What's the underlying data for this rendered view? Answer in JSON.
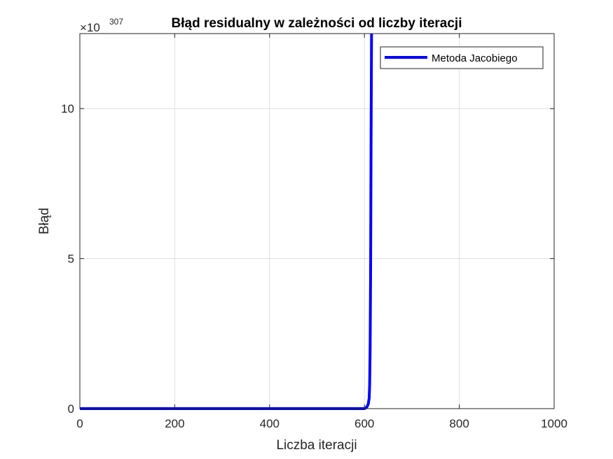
{
  "chart_data": {
    "type": "line",
    "title": "Błąd residualny w zależności od liczby iteracji",
    "xlabel": "Liczba iteracji",
    "ylabel": "Błąd",
    "y_exponent_base": "×10",
    "y_exponent_power": "307",
    "xlim": [
      0,
      1000
    ],
    "ylim": [
      0,
      12.5
    ],
    "x_ticks": [
      0,
      200,
      400,
      600,
      800,
      1000
    ],
    "x_tick_labels": [
      "0",
      "200",
      "400",
      "600",
      "800",
      "1000"
    ],
    "y_ticks": [
      0,
      5,
      10
    ],
    "y_tick_labels": [
      "0",
      "5",
      "10"
    ],
    "grid": true,
    "legend_location": "top-right",
    "series": [
      {
        "name": "Metoda Jacobiego",
        "color": "#0000ff",
        "x": [
          0,
          100,
          200,
          300,
          400,
          500,
          600,
          605,
          608,
          610,
          611,
          612,
          613,
          614,
          615
        ],
        "y": [
          0,
          0,
          0,
          0,
          0,
          0,
          0,
          0.05,
          0.15,
          0.35,
          0.8,
          2.0,
          4.5,
          9.0,
          12.5
        ]
      }
    ]
  }
}
